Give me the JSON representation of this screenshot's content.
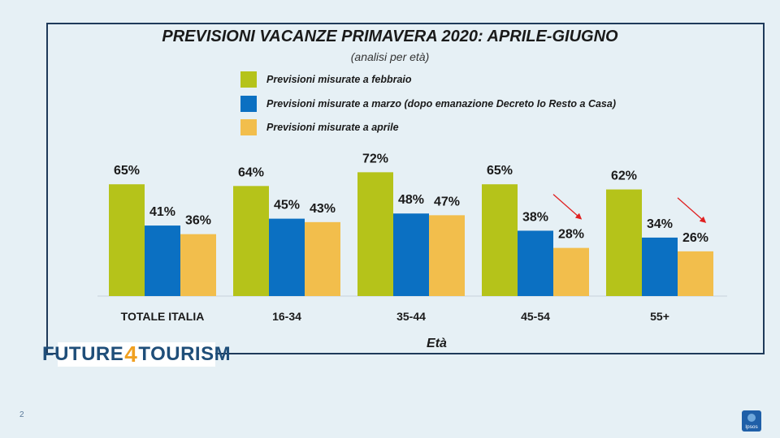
{
  "chart_data": {
    "type": "bar",
    "title": "PREVISIONI VACANZE PRIMAVERA 2020: APRILE-GIUGNO",
    "subtitle": "(analisi per età)",
    "xlabel": "Età",
    "ylabel": "",
    "ylim": [
      0,
      100
    ],
    "grid": false,
    "legend_position": "top",
    "categories": [
      "TOTALE ITALIA",
      "16-34",
      "35-44",
      "45-54",
      "55+"
    ],
    "series": [
      {
        "name": "Previsioni misurate a febbraio",
        "color": "#b5c31a",
        "values": [
          65,
          64,
          72,
          65,
          62
        ],
        "labels": [
          "65%",
          "64%",
          "72%",
          "65%",
          "62%"
        ]
      },
      {
        "name": "Previsioni misurate a marzo (dopo emanazione  Decreto Io Resto a Casa)",
        "color": "#0b70c2",
        "values": [
          41,
          45,
          48,
          38,
          34
        ],
        "labels": [
          "41%",
          "45%",
          "48%",
          "38%",
          "34%"
        ]
      },
      {
        "name": "Previsioni misurate a aprile",
        "color": "#f2be4c",
        "values": [
          36,
          43,
          47,
          28,
          26
        ],
        "labels": [
          "36%",
          "43%",
          "47%",
          "28%",
          "26%"
        ]
      }
    ],
    "annotations": [
      {
        "type": "arrow",
        "color": "#e02020",
        "category": "45-54",
        "series": 2,
        "meaning": "decrease"
      },
      {
        "type": "arrow",
        "color": "#e02020",
        "category": "55+",
        "series": 2,
        "meaning": "decrease"
      }
    ]
  },
  "logo": {
    "part1": "FUTURE",
    "part2": "4",
    "part3": "TOURISM"
  },
  "badge_text": "Ipsos",
  "page_number": "2"
}
